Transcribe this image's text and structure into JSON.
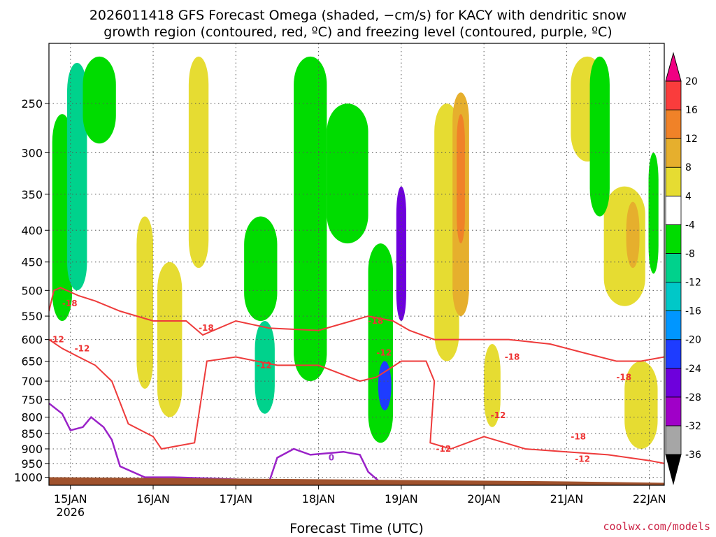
{
  "chart_data": {
    "type": "heatmap",
    "title_line1": "2026011418 GFS Forecast Omega (shaded, −cm/s) for KACY with dendritic snow",
    "title_line2": "growth region (contoured, red, ºC) and freezing level (contoured, purple, ºC)",
    "xlabel": "Forecast Time (UTC)",
    "credit": "coolwx.com/models",
    "x_ticks": [
      {
        "day": 0,
        "label": "15JAN",
        "sub": "2026"
      },
      {
        "day": 1,
        "label": "16JAN",
        "sub": ""
      },
      {
        "day": 2,
        "label": "17JAN",
        "sub": ""
      },
      {
        "day": 3,
        "label": "18JAN",
        "sub": ""
      },
      {
        "day": 4,
        "label": "19JAN",
        "sub": ""
      },
      {
        "day": 5,
        "label": "20JAN",
        "sub": ""
      },
      {
        "day": 6,
        "label": "21JAN",
        "sub": ""
      },
      {
        "day": 7,
        "label": "22JAN",
        "sub": ""
      }
    ],
    "xlim_days": [
      -0.26,
      7.18
    ],
    "y_ticks": [
      250,
      300,
      350,
      400,
      450,
      500,
      550,
      600,
      650,
      700,
      750,
      800,
      850,
      900,
      950,
      1000
    ],
    "ylim_hpa": [
      200,
      1030
    ],
    "y_scale": "log",
    "colorbar": {
      "levels": [
        -36,
        -32,
        -28,
        -24,
        -20,
        -16,
        -12,
        -8,
        -4,
        4,
        8,
        12,
        16,
        20
      ],
      "label_levels": [
        "-36",
        "-32",
        "-28",
        "-24",
        "-20",
        "-16",
        "-12",
        "-8",
        "-4",
        "4",
        "8",
        "12",
        "16",
        "20"
      ],
      "colors": [
        "#a6a6a6",
        "#a000c8",
        "#6e00dc",
        "#1e3cff",
        "#0096ff",
        "#00c8c8",
        "#00d28c",
        "#00dc00",
        "#ffffff",
        "#e6dc32",
        "#e6af2d",
        "#f08228",
        "#fa3c3c"
      ],
      "under_color": "#000000",
      "over_color": "#f00082"
    },
    "omega_regions": [
      {
        "day": -0.1,
        "day_halfwidth": 0.12,
        "p_top": 260,
        "p_bot": 560,
        "value": -8
      },
      {
        "day": 0.08,
        "day_halfwidth": 0.12,
        "p_top": 215,
        "p_bot": 500,
        "value": -12
      },
      {
        "day": 0.35,
        "day_halfwidth": 0.2,
        "p_top": 210,
        "p_bot": 290,
        "value": -6
      },
      {
        "day": 0.9,
        "day_halfwidth": 0.1,
        "p_top": 380,
        "p_bot": 720,
        "value": 6
      },
      {
        "day": 1.2,
        "day_halfwidth": 0.15,
        "p_top": 450,
        "p_bot": 800,
        "value": 6
      },
      {
        "day": 1.55,
        "day_halfwidth": 0.12,
        "p_top": 210,
        "p_bot": 460,
        "value": 5
      },
      {
        "day": 2.3,
        "day_halfwidth": 0.2,
        "p_top": 380,
        "p_bot": 560,
        "value": -8
      },
      {
        "day": 2.35,
        "day_halfwidth": 0.12,
        "p_top": 560,
        "p_bot": 790,
        "value": -12
      },
      {
        "day": 2.9,
        "day_halfwidth": 0.2,
        "p_top": 210,
        "p_bot": 700,
        "value": -7
      },
      {
        "day": 3.35,
        "day_halfwidth": 0.25,
        "p_top": 250,
        "p_bot": 420,
        "value": -8
      },
      {
        "day": 3.75,
        "day_halfwidth": 0.15,
        "p_top": 420,
        "p_bot": 880,
        "value": -8
      },
      {
        "day": 3.8,
        "day_halfwidth": 0.08,
        "p_top": 650,
        "p_bot": 780,
        "value": -22
      },
      {
        "day": 4.0,
        "day_halfwidth": 0.06,
        "p_top": 340,
        "p_bot": 560,
        "value": -26
      },
      {
        "day": 4.55,
        "day_halfwidth": 0.15,
        "p_top": 250,
        "p_bot": 650,
        "value": 6
      },
      {
        "day": 4.72,
        "day_halfwidth": 0.1,
        "p_top": 240,
        "p_bot": 550,
        "value": 9
      },
      {
        "day": 4.72,
        "day_halfwidth": 0.05,
        "p_top": 260,
        "p_bot": 420,
        "value": 14
      },
      {
        "day": 5.1,
        "day_halfwidth": 0.1,
        "p_top": 610,
        "p_bot": 830,
        "value": 6
      },
      {
        "day": 6.25,
        "day_halfwidth": 0.2,
        "p_top": 210,
        "p_bot": 310,
        "value": 5
      },
      {
        "day": 6.7,
        "day_halfwidth": 0.25,
        "p_top": 340,
        "p_bot": 530,
        "value": 5
      },
      {
        "day": 6.8,
        "day_halfwidth": 0.08,
        "p_top": 360,
        "p_bot": 460,
        "value": 10
      },
      {
        "day": 6.4,
        "day_halfwidth": 0.12,
        "p_top": 210,
        "p_bot": 380,
        "value": -7
      },
      {
        "day": 6.9,
        "day_halfwidth": 0.2,
        "p_top": 650,
        "p_bot": 900,
        "value": 5
      },
      {
        "day": 7.05,
        "day_halfwidth": 0.06,
        "p_top": 300,
        "p_bot": 470,
        "value": -7
      }
    ],
    "dgz_contours": [
      {
        "label": "-18",
        "label_day": -0.1,
        "label_p": 525,
        "x": [
          -0.26,
          -0.2,
          -0.12,
          0.1,
          0.3,
          0.6,
          1.0,
          1.4,
          1.6,
          2.0,
          2.4,
          3.0,
          3.4,
          3.6,
          3.9,
          4.1,
          4.4,
          4.8,
          5.3,
          5.8,
          6.2,
          6.6,
          6.9,
          7.18
        ],
        "y": [
          540,
          500,
          495,
          510,
          520,
          540,
          560,
          560,
          590,
          560,
          575,
          580,
          560,
          550,
          560,
          580,
          600,
          600,
          600,
          610,
          630,
          650,
          650,
          640
        ]
      },
      {
        "label": "-18",
        "label_day": 1.55,
        "label_p": 575,
        "x": [],
        "y": []
      },
      {
        "label": "-18",
        "label_day": 3.6,
        "label_p": 560,
        "x": [],
        "y": []
      },
      {
        "label": "-12",
        "label_day": -0.26,
        "label_p": 600,
        "x": [
          -0.26,
          -0.1,
          0.1,
          0.3,
          0.5,
          0.7,
          1.0,
          1.1,
          1.5,
          1.65,
          2.0,
          2.5,
          3.0,
          3.5,
          3.7,
          4.0,
          4.3,
          4.4,
          4.35,
          4.6,
          5.0,
          5.5,
          6.0,
          6.5,
          7.0,
          7.18
        ],
        "y": [
          600,
          620,
          640,
          660,
          700,
          820,
          860,
          900,
          880,
          650,
          640,
          660,
          660,
          700,
          690,
          650,
          650,
          700,
          880,
          900,
          860,
          900,
          910,
          920,
          940,
          950
        ]
      },
      {
        "label": "-12",
        "label_day": 0.05,
        "label_p": 620,
        "x": [],
        "y": []
      },
      {
        "label": "-12",
        "label_day": 2.25,
        "label_p": 660,
        "x": [],
        "y": []
      },
      {
        "label": "-12",
        "label_day": 3.7,
        "label_p": 630,
        "x": [],
        "y": []
      },
      {
        "label": "-12",
        "label_day": 4.42,
        "label_p": 900,
        "x": [],
        "y": []
      },
      {
        "label": "-12",
        "label_day": 5.08,
        "label_p": 795,
        "x": [],
        "y": []
      },
      {
        "label": "-18",
        "label_day": 5.25,
        "label_p": 640,
        "x": [],
        "y": []
      },
      {
        "label": "-18",
        "label_day": 6.6,
        "label_p": 690,
        "x": [],
        "y": []
      },
      {
        "label": "-18",
        "label_day": 6.05,
        "label_p": 860,
        "x": [],
        "y": []
      },
      {
        "label": "-12",
        "label_day": 6.1,
        "label_p": 935,
        "x": [],
        "y": []
      }
    ],
    "freezing_contour": {
      "label": "0",
      "label_day": 3.12,
      "label_p": 930,
      "x": [
        -0.26,
        -0.1,
        0.0,
        0.15,
        0.25,
        0.4,
        0.5,
        0.6,
        0.9,
        1.0,
        1.15,
        1.25,
        2.2,
        2.4,
        2.5,
        2.7,
        2.9,
        3.3,
        3.5,
        3.6,
        3.75
      ],
      "y": [
        760,
        790,
        840,
        830,
        800,
        830,
        870,
        960,
        1000,
        1000,
        1000,
        1000,
        1010,
        1020,
        930,
        900,
        920,
        910,
        920,
        980,
        1020
      ]
    },
    "terrain": {
      "color": "#a0522d",
      "surface_p": 1010
    }
  }
}
